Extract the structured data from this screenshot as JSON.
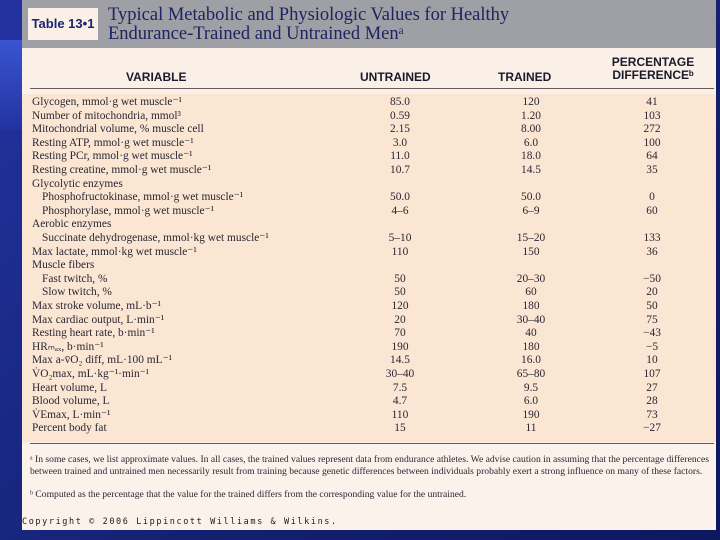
{
  "table_tag": "Table 13•1",
  "title_line1": "Typical Metabolic and Physiologic Values for Healthy",
  "title_line2": "Endurance-Trained and Untrained Menᵃ",
  "columns": {
    "variable": "VARIABLE",
    "untrained": "UNTRAINED",
    "trained": "TRAINED",
    "pct_line1": "PERCENTAGE",
    "pct_line2": "DIFFERENCEᵇ"
  },
  "rows": [
    {
      "v": "Glycogen, mmol·g wet muscle⁻¹",
      "u": "85.0",
      "t": "120",
      "p": "41",
      "indent": false
    },
    {
      "v": "Number of mitochondria, mmol³",
      "u": "0.59",
      "t": "1.20",
      "p": "103",
      "indent": false
    },
    {
      "v": "Mitochondrial volume, % muscle cell",
      "u": "2.15",
      "t": "8.00",
      "p": "272",
      "indent": false
    },
    {
      "v": "Resting ATP, mmol·g wet muscle⁻¹",
      "u": "3.0",
      "t": "6.0",
      "p": "100",
      "indent": false
    },
    {
      "v": "Resting PCr, mmol·g wet muscle⁻¹",
      "u": "11.0",
      "t": "18.0",
      "p": "64",
      "indent": false
    },
    {
      "v": "Resting creatine, mmol·g wet muscle⁻¹",
      "u": "10.7",
      "t": "14.5",
      "p": "35",
      "indent": false
    },
    {
      "v": "Glycolytic enzymes",
      "u": "",
      "t": "",
      "p": "",
      "indent": false
    },
    {
      "v": "Phosphofructokinase, mmol·g wet muscle⁻¹",
      "u": "50.0",
      "t": "50.0",
      "p": "0",
      "indent": true
    },
    {
      "v": "Phosphorylase, mmol·g wet muscle⁻¹",
      "u": "4–6",
      "t": "6–9",
      "p": "60",
      "indent": true
    },
    {
      "v": "Aerobic enzymes",
      "u": "",
      "t": "",
      "p": "",
      "indent": false
    },
    {
      "v": "Succinate dehydrogenase, mmol·kg wet muscle⁻¹",
      "u": "5–10",
      "t": "15–20",
      "p": "133",
      "indent": true
    },
    {
      "v": "Max lactate, mmol·kg wet muscle⁻¹",
      "u": "110",
      "t": "150",
      "p": "36",
      "indent": false
    },
    {
      "v": "Muscle fibers",
      "u": "",
      "t": "",
      "p": "",
      "indent": false
    },
    {
      "v": "Fast twitch, %",
      "u": "50",
      "t": "20–30",
      "p": "−50",
      "indent": true
    },
    {
      "v": "Slow twitch, %",
      "u": "50",
      "t": "60",
      "p": "20",
      "indent": true
    },
    {
      "v": "Max stroke volume, mL·b⁻¹",
      "u": "120",
      "t": "180",
      "p": "50",
      "indent": false
    },
    {
      "v": "Max cardiac output, L·min⁻¹",
      "u": "20",
      "t": "30–40",
      "p": "75",
      "indent": false
    },
    {
      "v": "Resting heart rate, b·min⁻¹",
      "u": "70",
      "t": "40",
      "p": "−43",
      "indent": false
    },
    {
      "v": "HRₘₐₓ, b·min⁻¹",
      "u": "190",
      "t": "180",
      "p": "−5",
      "indent": false
    },
    {
      "v": "Max a-v̄O₂ diff, mL·100 mL⁻¹",
      "u": "14.5",
      "t": "16.0",
      "p": "10",
      "indent": false
    },
    {
      "v": "V̇O₂max, mL·kg⁻¹·min⁻¹",
      "u": "30–40",
      "t": "65–80",
      "p": "107",
      "indent": false
    },
    {
      "v": "Heart volume, L",
      "u": "7.5",
      "t": "9.5",
      "p": "27",
      "indent": false
    },
    {
      "v": "Blood volume, L",
      "u": "4.7",
      "t": "6.0",
      "p": "28",
      "indent": false
    },
    {
      "v": "V̇Emax, L·min⁻¹",
      "u": "110",
      "t": "190",
      "p": "73",
      "indent": false
    },
    {
      "v": "Percent body fat",
      "u": "15",
      "t": "11",
      "p": "−27",
      "indent": false
    }
  ],
  "footnote_a": "ᵃ In some cases, we list approximate values. In all cases, the trained values represent data from endurance athletes. We advise caution in assuming that the percentage differences between trained and untrained men necessarily result from training because genetic differences between individuals probably exert a strong influence on many of these factors.",
  "footnote_b": "ᵇ Computed as the percentage that the value for the trained differs from the corresponding value for the untrained.",
  "copyright": "Copyright © 2006 Lippincott Williams & Wilkins.",
  "colors": {
    "header_band": "#9f9fa6",
    "page": "#fbf0e8",
    "slide": "#1b2a8a",
    "title_text": "#1f2460"
  }
}
